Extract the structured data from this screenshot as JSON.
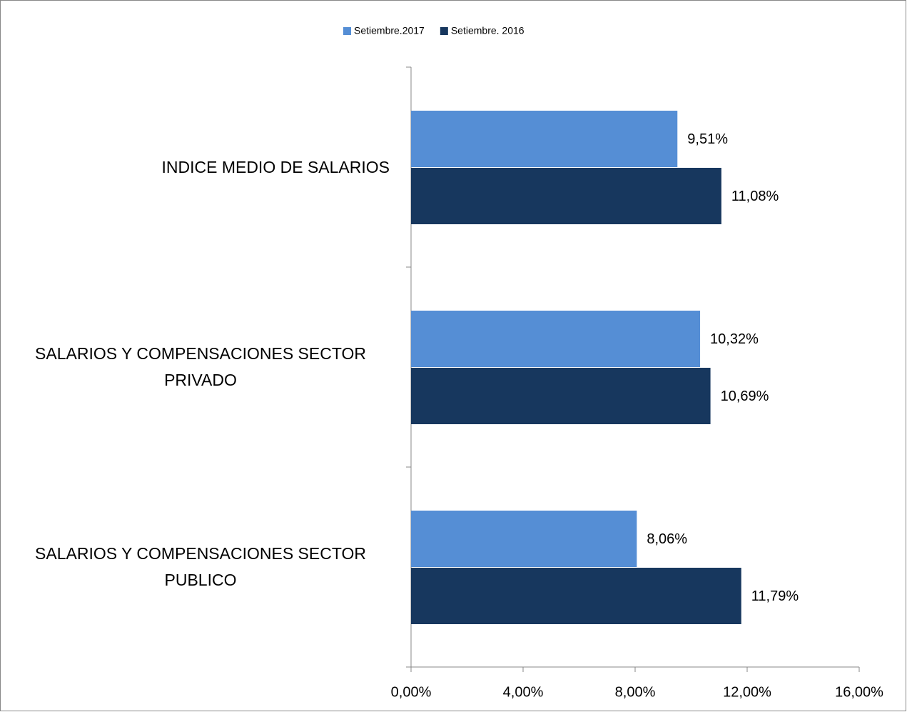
{
  "chart_data": {
    "type": "hbar",
    "categories": [
      "INDICE MEDIO DE SALARIOS",
      "SALARIOS Y COMPENSACIONES SECTOR PRIVADO",
      "SALARIOS Y COMPENSACIONES SECTOR PUBLICO"
    ],
    "series": [
      {
        "name": "Setiembre.2017",
        "color": "#558ed5",
        "values": [
          9.51,
          10.32,
          8.06
        ],
        "value_labels": [
          "9,51%",
          "10,32%",
          "8,06%"
        ]
      },
      {
        "name": "Setiembre. 2016",
        "color": "#17375e",
        "values": [
          11.08,
          10.69,
          11.79
        ],
        "value_labels": [
          "11,08%",
          "10,69%",
          "11,79%"
        ]
      }
    ],
    "xlim": [
      0,
      16
    ],
    "xticks": [
      {
        "value": 0,
        "label": "0,00%"
      },
      {
        "value": 4,
        "label": "4,00%"
      },
      {
        "value": 8,
        "label": "8,00%"
      },
      {
        "value": 12,
        "label": "12,00%"
      },
      {
        "value": 16,
        "label": "16,00%"
      }
    ],
    "legend": "top"
  }
}
